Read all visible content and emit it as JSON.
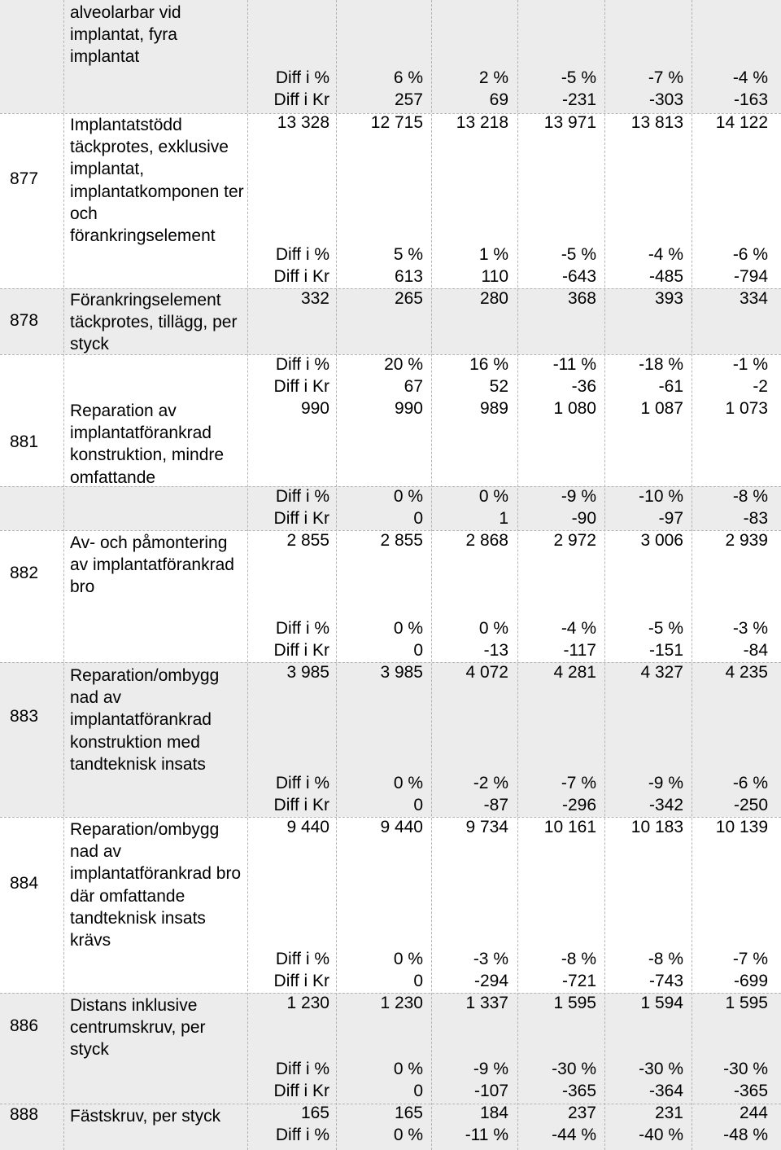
{
  "rows": [
    {
      "code": "",
      "description": "alveolarbar vid implantat, fyra implantat",
      "lines": []
    },
    {
      "code": "877",
      "description": "Implantatstödd täckprotes, exklusive implantat, implantatkomponen ter och förankringselement",
      "lines": [
        {
          "label": "Diff i %",
          "values": [
            "6 %",
            "2 %",
            "-5 %",
            "-7 %",
            "-4 %"
          ]
        },
        {
          "label": "Diff i Kr",
          "values": [
            "257",
            "69",
            "-231",
            "-303",
            "-163"
          ]
        },
        {
          "label": "13 328",
          "values": [
            "12 715",
            "13 218",
            "13 971",
            "13 813",
            "14 122"
          ]
        },
        {
          "label": "Diff i %",
          "values": [
            "5 %",
            "1 %",
            "-5 %",
            "-4 %",
            "-6 %"
          ]
        },
        {
          "label": "Diff i Kr",
          "values": [
            "613",
            "110",
            "-643",
            "-485",
            "-794"
          ]
        }
      ]
    },
    {
      "code": "878",
      "description": "Förankringselement täckprotes, tillägg, per styck",
      "lines": [
        {
          "label": "332",
          "values": [
            "265",
            "280",
            "368",
            "393",
            "334"
          ]
        },
        {
          "label": "Diff i %",
          "values": [
            "20 %",
            "16 %",
            "-11 %",
            "-18 %",
            "-1 %"
          ]
        },
        {
          "label": "Diff i Kr",
          "values": [
            "67",
            "52",
            "-36",
            "-61",
            "-2"
          ]
        }
      ]
    },
    {
      "code": "881",
      "description": "Reparation av implantatförankrad konstruktion, mindre omfattande",
      "lines": [
        {
          "label": "990",
          "values": [
            "990",
            "989",
            "1 080",
            "1 087",
            "1 073"
          ]
        },
        {
          "label": "Diff i %",
          "values": [
            "0 %",
            "0 %",
            "-9 %",
            "-10 %",
            "-8 %"
          ]
        },
        {
          "label": "Diff i Kr",
          "values": [
            "0",
            "1",
            "-90",
            "-97",
            "-83"
          ]
        }
      ]
    },
    {
      "code": "882",
      "description": "Av- och påmontering av implantatförankrad bro",
      "lines": [
        {
          "label": "2 855",
          "values": [
            "2 855",
            "2 868",
            "2 972",
            "3 006",
            "2 939"
          ]
        },
        {
          "label": "Diff i %",
          "values": [
            "0 %",
            "0 %",
            "-4 %",
            "-5 %",
            "-3 %"
          ]
        },
        {
          "label": "Diff i Kr",
          "values": [
            "0",
            "-13",
            "-117",
            "-151",
            "-84"
          ]
        }
      ]
    },
    {
      "code": "883",
      "description": "Reparation/ombygg nad av implantatförankrad konstruktion med tandteknisk insats",
      "lines": [
        {
          "label": "3 985",
          "values": [
            "3 985",
            "4 072",
            "4 281",
            "4 327",
            "4 235"
          ]
        },
        {
          "label": "Diff i %",
          "values": [
            "0 %",
            "-2 %",
            "-7 %",
            "-9 %",
            "-6 %"
          ]
        },
        {
          "label": "Diff i Kr",
          "values": [
            "0",
            "-87",
            "-296",
            "-342",
            "-250"
          ]
        }
      ]
    },
    {
      "code": "884",
      "description": "Reparation/ombygg nad av implantatförankrad bro där omfattande tandteknisk insats krävs",
      "lines": [
        {
          "label": "9 440",
          "values": [
            "9 440",
            "9 734",
            "10 161",
            "10 183",
            "10 139"
          ]
        },
        {
          "label": "Diff i %",
          "values": [
            "0 %",
            "-3 %",
            "-8 %",
            "-8 %",
            "-7 %"
          ]
        },
        {
          "label": "Diff i Kr",
          "values": [
            "0",
            "-294",
            "-721",
            "-743",
            "-699"
          ]
        }
      ]
    },
    {
      "code": "886",
      "description": "Distans inklusive centrumskruv, per styck",
      "lines": [
        {
          "label": "1 230",
          "values": [
            "1 230",
            "1 337",
            "1 595",
            "1 594",
            "1 595"
          ]
        },
        {
          "label": "Diff i %",
          "values": [
            "0 %",
            "-9 %",
            "-30 %",
            "-30 %",
            "-30 %"
          ]
        },
        {
          "label": "Diff i Kr",
          "values": [
            "0",
            "-107",
            "-365",
            "-364",
            "-365"
          ]
        }
      ]
    },
    {
      "code": "888",
      "description": "Fästskruv, per styck",
      "lines": [
        {
          "label": "165",
          "values": [
            "165",
            "184",
            "237",
            "231",
            "244"
          ]
        },
        {
          "label": "Diff i %",
          "values": [
            "0 %",
            "-11 %",
            "-44 %",
            "-40 %",
            "-48 %"
          ]
        }
      ]
    }
  ]
}
